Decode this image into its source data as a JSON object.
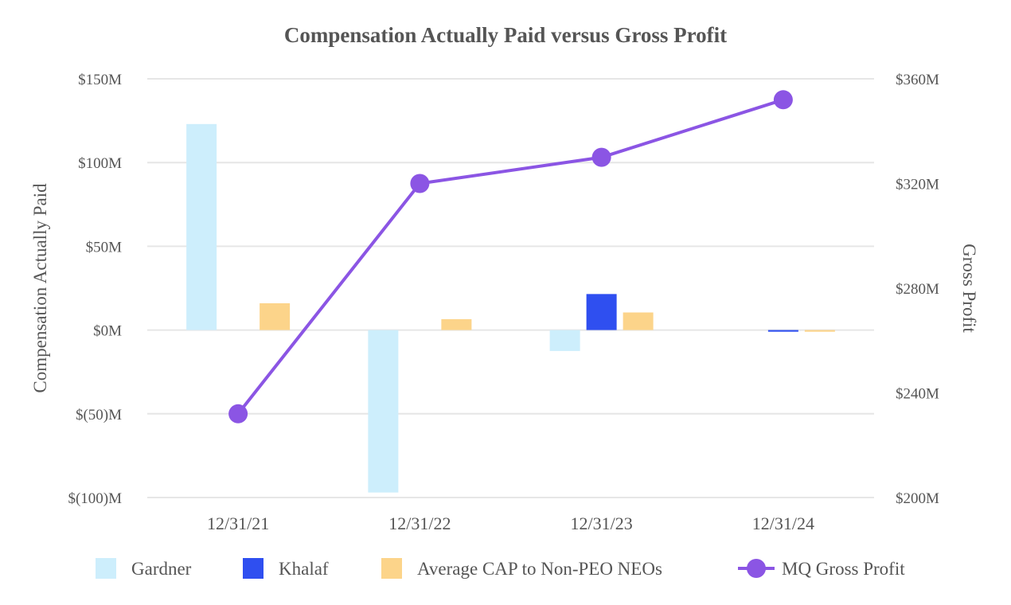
{
  "chart_data": {
    "type": "bar",
    "title": "Compensation Actually Paid versus Gross Profit",
    "categories": [
      "12/31/21",
      "12/31/22",
      "12/31/23",
      "12/31/24"
    ],
    "ylabel": "Compensation Actually Paid",
    "y2label": "Gross Profit",
    "ylim": [
      -100,
      150
    ],
    "y2lim": [
      200,
      360
    ],
    "yticks": [
      150,
      100,
      50,
      0,
      -50,
      -100
    ],
    "ytick_labels": [
      "$150M",
      "$100M",
      "$50M",
      "$0M",
      "$(50)M",
      "$(100)M"
    ],
    "y2ticks": [
      360,
      320,
      280,
      240,
      200
    ],
    "y2tick_labels": [
      "$360M",
      "$320M",
      "$280M",
      "$240M",
      "$200M"
    ],
    "series": [
      {
        "name": "Gardner",
        "kind": "bar",
        "axis": "left",
        "color": "#cdeefc",
        "values": [
          123,
          -97,
          -12.5,
          null
        ]
      },
      {
        "name": "Khalaf",
        "kind": "bar",
        "axis": "left",
        "color": "#2f4ff0",
        "values": [
          null,
          null,
          21.5,
          -1
        ]
      },
      {
        "name": "Average CAP to Non-PEO NEOs",
        "kind": "bar",
        "axis": "left",
        "color": "#fcd48a",
        "values": [
          16,
          6.5,
          10.5,
          -1
        ]
      },
      {
        "name": "MQ Gross Profit",
        "kind": "line",
        "axis": "right",
        "color": "#8b55e4",
        "values": [
          232,
          320,
          330,
          352
        ]
      }
    ],
    "grid": true,
    "legend": "bottom"
  }
}
